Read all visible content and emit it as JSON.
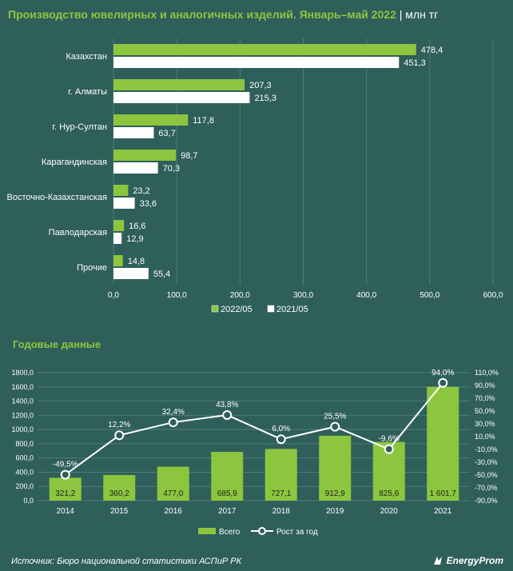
{
  "header": {
    "title": "Производство ювелирных и аналогичных изделий. Январь–май 2022",
    "unit": "млн тг"
  },
  "chart_data": [
    {
      "type": "bar",
      "orientation": "horizontal",
      "categories": [
        "Казахстан",
        "г. Алматы",
        "г. Нур-Султан",
        "Карагандинская",
        "Восточно-Казахстанская",
        "Павлодарская",
        "Прочие"
      ],
      "series": [
        {
          "name": "2022/05",
          "values": [
            478.4,
            207.3,
            117.8,
            98.7,
            23.2,
            16.6,
            14.8
          ],
          "labels": [
            "478,4",
            "207,3",
            "117,8",
            "98,7",
            "23,2",
            "16,6",
            "14,8"
          ],
          "color": "#8cc63f"
        },
        {
          "name": "2021/05",
          "values": [
            451.3,
            215.3,
            63.7,
            70.3,
            33.6,
            12.9,
            55.4
          ],
          "labels": [
            "451,3",
            "215,3",
            "63,7",
            "70,3",
            "33,6",
            "12,9",
            "55,4"
          ],
          "color": "#ffffff"
        }
      ],
      "xlim": [
        0,
        600
      ],
      "xticks": [
        "0,0",
        "100,0",
        "200,0",
        "300,0",
        "400,0",
        "500,0",
        "600,0"
      ],
      "legend": "bottom",
      "grid": true
    },
    {
      "type": "bar+line",
      "title": "Годовые данные",
      "categories": [
        "2014",
        "2015",
        "2016",
        "2017",
        "2018",
        "2019",
        "2020",
        "2021"
      ],
      "bar_series": {
        "name": "Всего",
        "values": [
          321.2,
          360.2,
          477.0,
          685.9,
          727.1,
          912.9,
          825.6,
          1601.7
        ],
        "labels": [
          "321,2",
          "360,2",
          "477,0",
          "685,9",
          "727,1",
          "912,9",
          "825,6",
          "1 601,7"
        ],
        "color": "#8cc63f"
      },
      "line_series": {
        "name": "Рост за год",
        "values": [
          -49.5,
          12.2,
          32.4,
          43.8,
          6.0,
          25.5,
          -9.6,
          94.0
        ],
        "labels": [
          "-49,5%",
          "12,2%",
          "32,4%",
          "43,8%",
          "6,0%",
          "25,5%",
          "-9,6%",
          "94,0%"
        ],
        "color": "#ffffff"
      },
      "ylim_left": [
        0,
        1800
      ],
      "yticks_left": [
        "0,0",
        "200,0",
        "400,0",
        "600,0",
        "800,0",
        "1000,0",
        "1200,0",
        "1400,0",
        "1600,0",
        "1800,0"
      ],
      "ylim_right": [
        -90,
        110
      ],
      "yticks_right": [
        "-90,0%",
        "-70,0%",
        "-50,0%",
        "-30,0%",
        "-10,0%",
        "10,0%",
        "30,0%",
        "50,0%",
        "70,0%",
        "90,0%",
        "110,0%"
      ],
      "legend": "bottom",
      "grid": true
    }
  ],
  "footer": {
    "source": "Источник: Бюро национальной статистики АСПиР РК",
    "brand": "EnergyProm"
  },
  "colors": {
    "background": "#2f5f5a",
    "accent": "#8cc63f",
    "panel": "#ffffff"
  }
}
